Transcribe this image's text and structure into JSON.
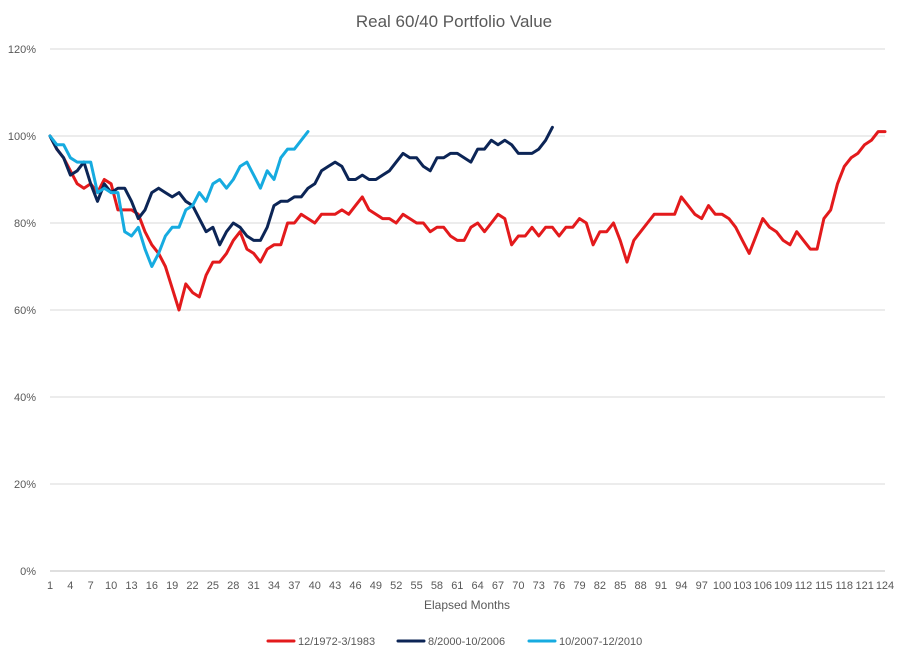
{
  "chart_data": {
    "type": "line",
    "title": "Real 60/40 Portfolio Value",
    "xlabel": "Elapsed Months",
    "ylabel": "",
    "xlim": [
      1,
      124
    ],
    "ylim": [
      0,
      1.2
    ],
    "y_ticks": [
      "0%",
      "20%",
      "40%",
      "60%",
      "80%",
      "100%",
      "120%"
    ],
    "x_ticks": [
      "1",
      "4",
      "7",
      "10",
      "13",
      "16",
      "19",
      "22",
      "25",
      "28",
      "31",
      "34",
      "37",
      "40",
      "43",
      "46",
      "49",
      "52",
      "55",
      "58",
      "61",
      "64",
      "67",
      "70",
      "73",
      "76",
      "79",
      "82",
      "85",
      "88",
      "91",
      "94",
      "97",
      "100",
      "103",
      "106",
      "109",
      "112",
      "115",
      "118",
      "121",
      "124"
    ],
    "grid": "horizontal",
    "legend_position": "bottom",
    "series": [
      {
        "name": "12/1972-3/1983",
        "color": "#e31a1c",
        "x": [
          1,
          2,
          3,
          4,
          5,
          6,
          7,
          8,
          9,
          10,
          11,
          12,
          13,
          14,
          15,
          16,
          17,
          18,
          19,
          20,
          21,
          22,
          23,
          24,
          25,
          26,
          27,
          28,
          29,
          30,
          31,
          32,
          33,
          34,
          35,
          36,
          37,
          38,
          39,
          40,
          41,
          42,
          43,
          44,
          45,
          46,
          47,
          48,
          49,
          50,
          51,
          52,
          53,
          54,
          55,
          56,
          57,
          58,
          59,
          60,
          61,
          62,
          63,
          64,
          65,
          66,
          67,
          68,
          69,
          70,
          71,
          72,
          73,
          74,
          75,
          76,
          77,
          78,
          79,
          80,
          81,
          82,
          83,
          84,
          85,
          86,
          87,
          88,
          89,
          90,
          91,
          92,
          93,
          94,
          95,
          96,
          97,
          98,
          99,
          100,
          101,
          102,
          103,
          104,
          105,
          106,
          107,
          108,
          109,
          110,
          111,
          112,
          113,
          114,
          115,
          116,
          117,
          118,
          119,
          120,
          121,
          122,
          123,
          124
        ],
        "values": [
          1.0,
          0.97,
          0.95,
          0.92,
          0.89,
          0.88,
          0.89,
          0.87,
          0.9,
          0.89,
          0.83,
          0.83,
          0.83,
          0.82,
          0.78,
          0.75,
          0.73,
          0.7,
          0.65,
          0.6,
          0.66,
          0.64,
          0.63,
          0.68,
          0.71,
          0.71,
          0.73,
          0.76,
          0.78,
          0.74,
          0.73,
          0.71,
          0.74,
          0.75,
          0.75,
          0.8,
          0.8,
          0.82,
          0.81,
          0.8,
          0.82,
          0.82,
          0.82,
          0.83,
          0.82,
          0.84,
          0.86,
          0.83,
          0.82,
          0.81,
          0.81,
          0.8,
          0.82,
          0.81,
          0.8,
          0.8,
          0.78,
          0.79,
          0.79,
          0.77,
          0.76,
          0.76,
          0.79,
          0.8,
          0.78,
          0.8,
          0.82,
          0.81,
          0.75,
          0.77,
          0.77,
          0.79,
          0.77,
          0.79,
          0.79,
          0.77,
          0.79,
          0.79,
          0.81,
          0.8,
          0.75,
          0.78,
          0.78,
          0.8,
          0.76,
          0.71,
          0.76,
          0.78,
          0.8,
          0.82,
          0.82,
          0.82,
          0.82,
          0.86,
          0.84,
          0.82,
          0.81,
          0.84,
          0.82,
          0.82,
          0.81,
          0.79,
          0.76,
          0.73,
          0.77,
          0.81,
          0.79,
          0.78,
          0.76,
          0.75,
          0.78,
          0.76,
          0.74,
          0.74,
          0.81,
          0.83,
          0.89,
          0.93,
          0.95,
          0.96,
          0.98,
          0.99,
          1.01,
          1.01
        ]
      },
      {
        "name": "8/2000-10/2006",
        "color": "#0c2556",
        "x": [
          1,
          2,
          3,
          4,
          5,
          6,
          7,
          8,
          9,
          10,
          11,
          12,
          13,
          14,
          15,
          16,
          17,
          18,
          19,
          20,
          21,
          22,
          23,
          24,
          25,
          26,
          27,
          28,
          29,
          30,
          31,
          32,
          33,
          34,
          35,
          36,
          37,
          38,
          39,
          40,
          41,
          42,
          43,
          44,
          45,
          46,
          47,
          48,
          49,
          50,
          51,
          52,
          53,
          54,
          55,
          56,
          57,
          58,
          59,
          60,
          61,
          62,
          63,
          64,
          65,
          66,
          67,
          68,
          69,
          70,
          71,
          72,
          73,
          74,
          75
        ],
        "values": [
          1.0,
          0.97,
          0.95,
          0.91,
          0.92,
          0.94,
          0.89,
          0.85,
          0.89,
          0.87,
          0.88,
          0.88,
          0.85,
          0.81,
          0.83,
          0.87,
          0.88,
          0.87,
          0.86,
          0.87,
          0.85,
          0.84,
          0.81,
          0.78,
          0.79,
          0.75,
          0.78,
          0.8,
          0.79,
          0.77,
          0.76,
          0.76,
          0.79,
          0.84,
          0.85,
          0.85,
          0.86,
          0.86,
          0.88,
          0.89,
          0.92,
          0.93,
          0.94,
          0.93,
          0.9,
          0.9,
          0.91,
          0.9,
          0.9,
          0.91,
          0.92,
          0.94,
          0.96,
          0.95,
          0.95,
          0.93,
          0.92,
          0.95,
          0.95,
          0.96,
          0.96,
          0.95,
          0.94,
          0.97,
          0.97,
          0.99,
          0.98,
          0.99,
          0.98,
          0.96,
          0.96,
          0.96,
          0.97,
          0.99,
          1.02
        ]
      },
      {
        "name": "10/2007-12/2010",
        "color": "#16abe0",
        "x": [
          1,
          2,
          3,
          4,
          5,
          6,
          7,
          8,
          9,
          10,
          11,
          12,
          13,
          14,
          15,
          16,
          17,
          18,
          19,
          20,
          21,
          22,
          23,
          24,
          25,
          26,
          27,
          28,
          29,
          30,
          31,
          32,
          33,
          34,
          35,
          36,
          37,
          38,
          39
        ],
        "values": [
          1.0,
          0.98,
          0.98,
          0.95,
          0.94,
          0.94,
          0.94,
          0.87,
          0.88,
          0.87,
          0.87,
          0.78,
          0.77,
          0.79,
          0.74,
          0.7,
          0.73,
          0.77,
          0.79,
          0.79,
          0.83,
          0.84,
          0.87,
          0.85,
          0.89,
          0.9,
          0.88,
          0.9,
          0.93,
          0.94,
          0.91,
          0.88,
          0.92,
          0.9,
          0.95,
          0.97,
          0.97,
          0.99,
          1.01
        ]
      }
    ]
  }
}
